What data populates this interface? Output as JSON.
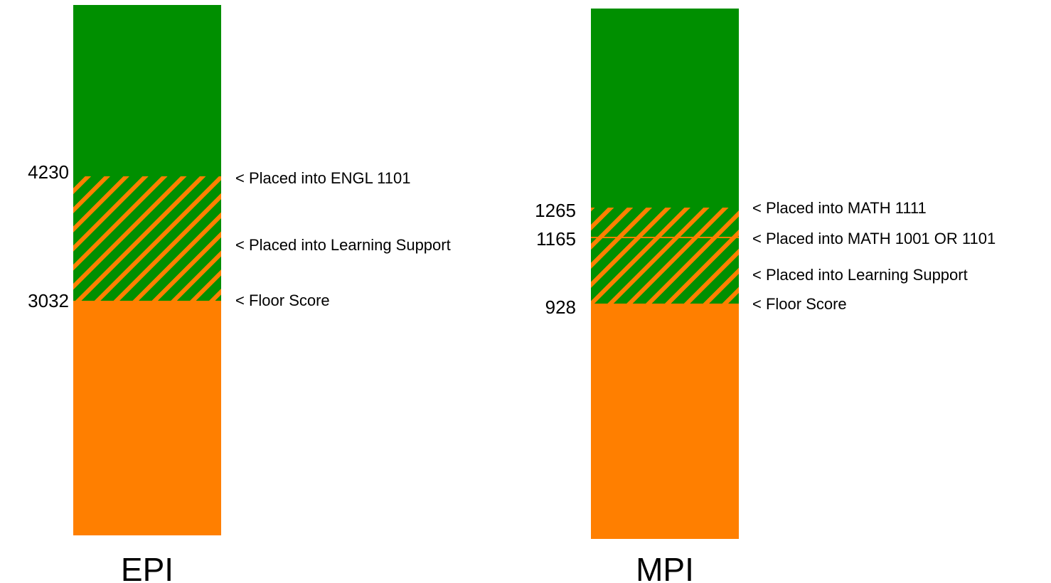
{
  "colors": {
    "green": "#008f00",
    "orange": "#ff7f00"
  },
  "bars": [
    {
      "label": "EPI",
      "thresholds": [
        {
          "score": "4230",
          "note": "< Placed into ENGL 1101"
        },
        {
          "score": "",
          "note": "< Placed into Learning Support"
        },
        {
          "score": "3032",
          "note": "< Floor Score"
        }
      ]
    },
    {
      "label": "MPI",
      "thresholds": [
        {
          "score": "1265",
          "note": "< Placed into MATH 1111"
        },
        {
          "score": "1165",
          "note": "< Placed into MATH 1001 OR 1101"
        },
        {
          "score": "",
          "note": "< Placed into Learning Support"
        },
        {
          "score": "928",
          "note": "< Floor Score"
        }
      ]
    }
  ]
}
